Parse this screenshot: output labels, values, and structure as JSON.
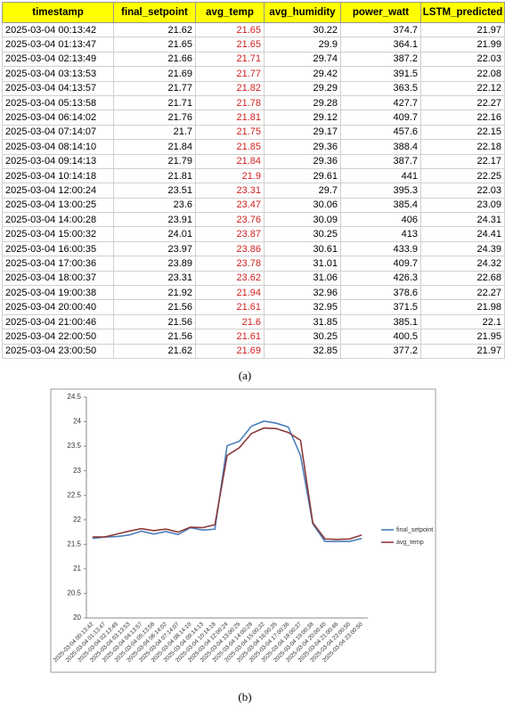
{
  "table": {
    "columns": [
      "timestamp",
      "final_setpoint",
      "avg_temp",
      "avg_humidity",
      "power_watt",
      "LSTM_predicted"
    ],
    "rows": [
      [
        "2025-03-04 00:13:42",
        21.62,
        21.65,
        30.22,
        374.7,
        21.97
      ],
      [
        "2025-03-04 01:13:47",
        21.65,
        21.65,
        29.9,
        364.1,
        21.99
      ],
      [
        "2025-03-04 02:13:49",
        21.66,
        21.71,
        29.74,
        387.2,
        22.03
      ],
      [
        "2025-03-04 03:13:53",
        21.69,
        21.77,
        29.42,
        391.5,
        22.08
      ],
      [
        "2025-03-04 04:13:57",
        21.77,
        21.82,
        29.29,
        363.5,
        22.12
      ],
      [
        "2025-03-04 05:13:58",
        21.71,
        21.78,
        29.28,
        427.7,
        22.27
      ],
      [
        "2025-03-04 06:14:02",
        21.76,
        21.81,
        29.12,
        409.7,
        22.16
      ],
      [
        "2025-03-04 07:14:07",
        21.7,
        21.75,
        29.17,
        457.6,
        22.15
      ],
      [
        "2025-03-04 08:14:10",
        21.84,
        21.85,
        29.36,
        388.4,
        22.18
      ],
      [
        "2025-03-04 09:14:13",
        21.79,
        21.84,
        29.36,
        387.7,
        22.17
      ],
      [
        "2025-03-04 10:14:18",
        21.81,
        21.9,
        29.61,
        441,
        22.25
      ],
      [
        "2025-03-04 12:00:24",
        23.51,
        23.31,
        29.7,
        395.3,
        22.03
      ],
      [
        "2025-03-04 13:00:25",
        23.6,
        23.47,
        30.06,
        385.4,
        23.09
      ],
      [
        "2025-03-04 14:00:28",
        23.91,
        23.76,
        30.09,
        406,
        24.31
      ],
      [
        "2025-03-04 15:00:32",
        24.01,
        23.87,
        30.25,
        413,
        24.41
      ],
      [
        "2025-03-04 16:00:35",
        23.97,
        23.86,
        30.61,
        433.9,
        24.39
      ],
      [
        "2025-03-04 17:00:36",
        23.89,
        23.78,
        31.01,
        409.7,
        24.32
      ],
      [
        "2025-03-04 18:00:37",
        23.31,
        23.62,
        31.06,
        426.3,
        22.68
      ],
      [
        "2025-03-04 19:00:38",
        21.92,
        21.94,
        32.96,
        378.6,
        22.27
      ],
      [
        "2025-03-04 20:00:40",
        21.56,
        21.61,
        32.95,
        371.5,
        21.98
      ],
      [
        "2025-03-04 21:00:46",
        21.56,
        21.6,
        31.85,
        385.1,
        22.1
      ],
      [
        "2025-03-04 22:00:50",
        21.56,
        21.61,
        30.25,
        400.5,
        21.95
      ],
      [
        "2025-03-04 23:00:50",
        21.62,
        21.69,
        32.85,
        377.2,
        21.97
      ]
    ],
    "caption": "(a)"
  },
  "chart_data": {
    "type": "line",
    "categories": [
      "2025-03-04 00:13:42",
      "2025-03-04 01:13:47",
      "2025-03-04 02:13:49",
      "2025-03-04 03:13:53",
      "2025-03-04 04:13:57",
      "2025-03-04 05:13:58",
      "2025-03-04 06:14:02",
      "2025-03-04 07:14:07",
      "2025-03-04 08:14:10",
      "2025-03-04 09:14:13",
      "2025-03-04 10:14:18",
      "2025-03-04 12:00:24",
      "2025-03-04 13:00:25",
      "2025-03-04 14:00:28",
      "2025-03-04 15:00:32",
      "2025-03-04 16:00:35",
      "2025-03-04 17:00:36",
      "2025-03-04 18:00:37",
      "2025-03-04 19:00:38",
      "2025-03-04 20:00:40",
      "2025-03-04 21:00:46",
      "2025-03-04 22:00:50",
      "2025-03-04 23:00:50"
    ],
    "series": [
      {
        "name": "final_setpoint",
        "color": "#4a7ebb",
        "values": [
          21.62,
          21.65,
          21.66,
          21.69,
          21.77,
          21.71,
          21.76,
          21.7,
          21.84,
          21.79,
          21.81,
          23.51,
          23.6,
          23.91,
          24.01,
          23.97,
          23.89,
          23.31,
          21.92,
          21.56,
          21.56,
          21.56,
          21.62
        ]
      },
      {
        "name": "avg_temp",
        "color": "#8b3a3a",
        "values": [
          21.65,
          21.65,
          21.71,
          21.77,
          21.82,
          21.78,
          21.81,
          21.75,
          21.85,
          21.84,
          21.9,
          23.31,
          23.47,
          23.76,
          23.87,
          23.86,
          23.78,
          23.62,
          21.94,
          21.61,
          21.6,
          21.61,
          21.69
        ]
      }
    ],
    "ylim": [
      20,
      24.5
    ],
    "yticks": [
      20,
      20.5,
      21,
      21.5,
      22,
      22.5,
      23,
      23.5,
      24,
      24.5
    ],
    "grid": false,
    "legend": "right",
    "caption": "(b)"
  }
}
